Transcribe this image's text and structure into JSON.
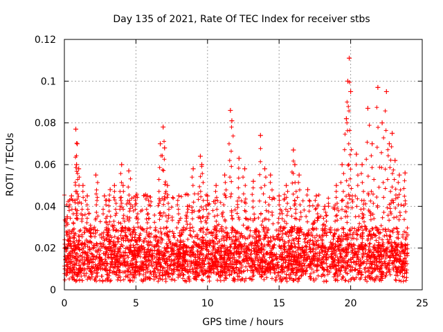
{
  "chart_data": {
    "type": "scatter",
    "title": "Day 135 of 2021, Rate Of TEC Index for receiver stbs",
    "xlabel": "GPS time / hours",
    "ylabel": "ROTI / TECUs",
    "xlim": [
      0,
      25
    ],
    "ylim": [
      0,
      0.12
    ],
    "xticks": [
      0,
      5,
      10,
      15,
      20,
      25
    ],
    "xtick_labels": [
      "0",
      "5",
      "10",
      "15",
      "20",
      "25"
    ],
    "yticks": [
      0,
      0.02,
      0.04,
      0.06,
      0.08,
      0.1,
      0.12
    ],
    "ytick_labels": [
      "0",
      "0.02",
      "0.04",
      "0.06",
      "0.08",
      "0.1",
      "0.12"
    ],
    "grid": true,
    "marker": "+",
    "marker_color": "#ff0000",
    "data_x_range": [
      0,
      24
    ],
    "series": [
      {
        "name": "ROTI",
        "note": "dense point cloud; baseline ~0.005-0.03 TECU, listed points are the visible spikes",
        "x": [
          0.2,
          0.5,
          0.8,
          0.85,
          0.9,
          1.0,
          1.3,
          1.6,
          2.2,
          2.8,
          3.2,
          3.5,
          4.0,
          4.1,
          4.5,
          5.0,
          5.8,
          6.7,
          6.9,
          7.0,
          7.2,
          8.0,
          8.6,
          9.0,
          9.5,
          9.6,
          10.0,
          10.6,
          11.2,
          11.6,
          11.7,
          12.2,
          12.6,
          13.2,
          13.7,
          14.0,
          14.4,
          15.0,
          15.5,
          16.0,
          16.1,
          16.4,
          17.0,
          17.6,
          18.2,
          19.0,
          19.4,
          19.7,
          19.8,
          19.9,
          20.0,
          20.4,
          20.8,
          21.2,
          21.5,
          21.9,
          22.2,
          22.5,
          22.7,
          22.9,
          23.1,
          23.4,
          23.8
        ],
        "y": [
          0.035,
          0.045,
          0.077,
          0.06,
          0.07,
          0.058,
          0.05,
          0.045,
          0.055,
          0.045,
          0.048,
          0.05,
          0.06,
          0.05,
          0.057,
          0.045,
          0.045,
          0.07,
          0.078,
          0.068,
          0.05,
          0.045,
          0.04,
          0.058,
          0.064,
          0.06,
          0.045,
          0.05,
          0.055,
          0.086,
          0.081,
          0.063,
          0.058,
          0.052,
          0.074,
          0.058,
          0.055,
          0.045,
          0.05,
          0.067,
          0.06,
          0.055,
          0.048,
          0.045,
          0.04,
          0.05,
          0.06,
          0.082,
          0.1,
          0.111,
          0.095,
          0.065,
          0.06,
          0.087,
          0.07,
          0.097,
          0.08,
          0.095,
          0.07,
          0.075,
          0.062,
          0.055,
          0.056
        ]
      }
    ]
  }
}
